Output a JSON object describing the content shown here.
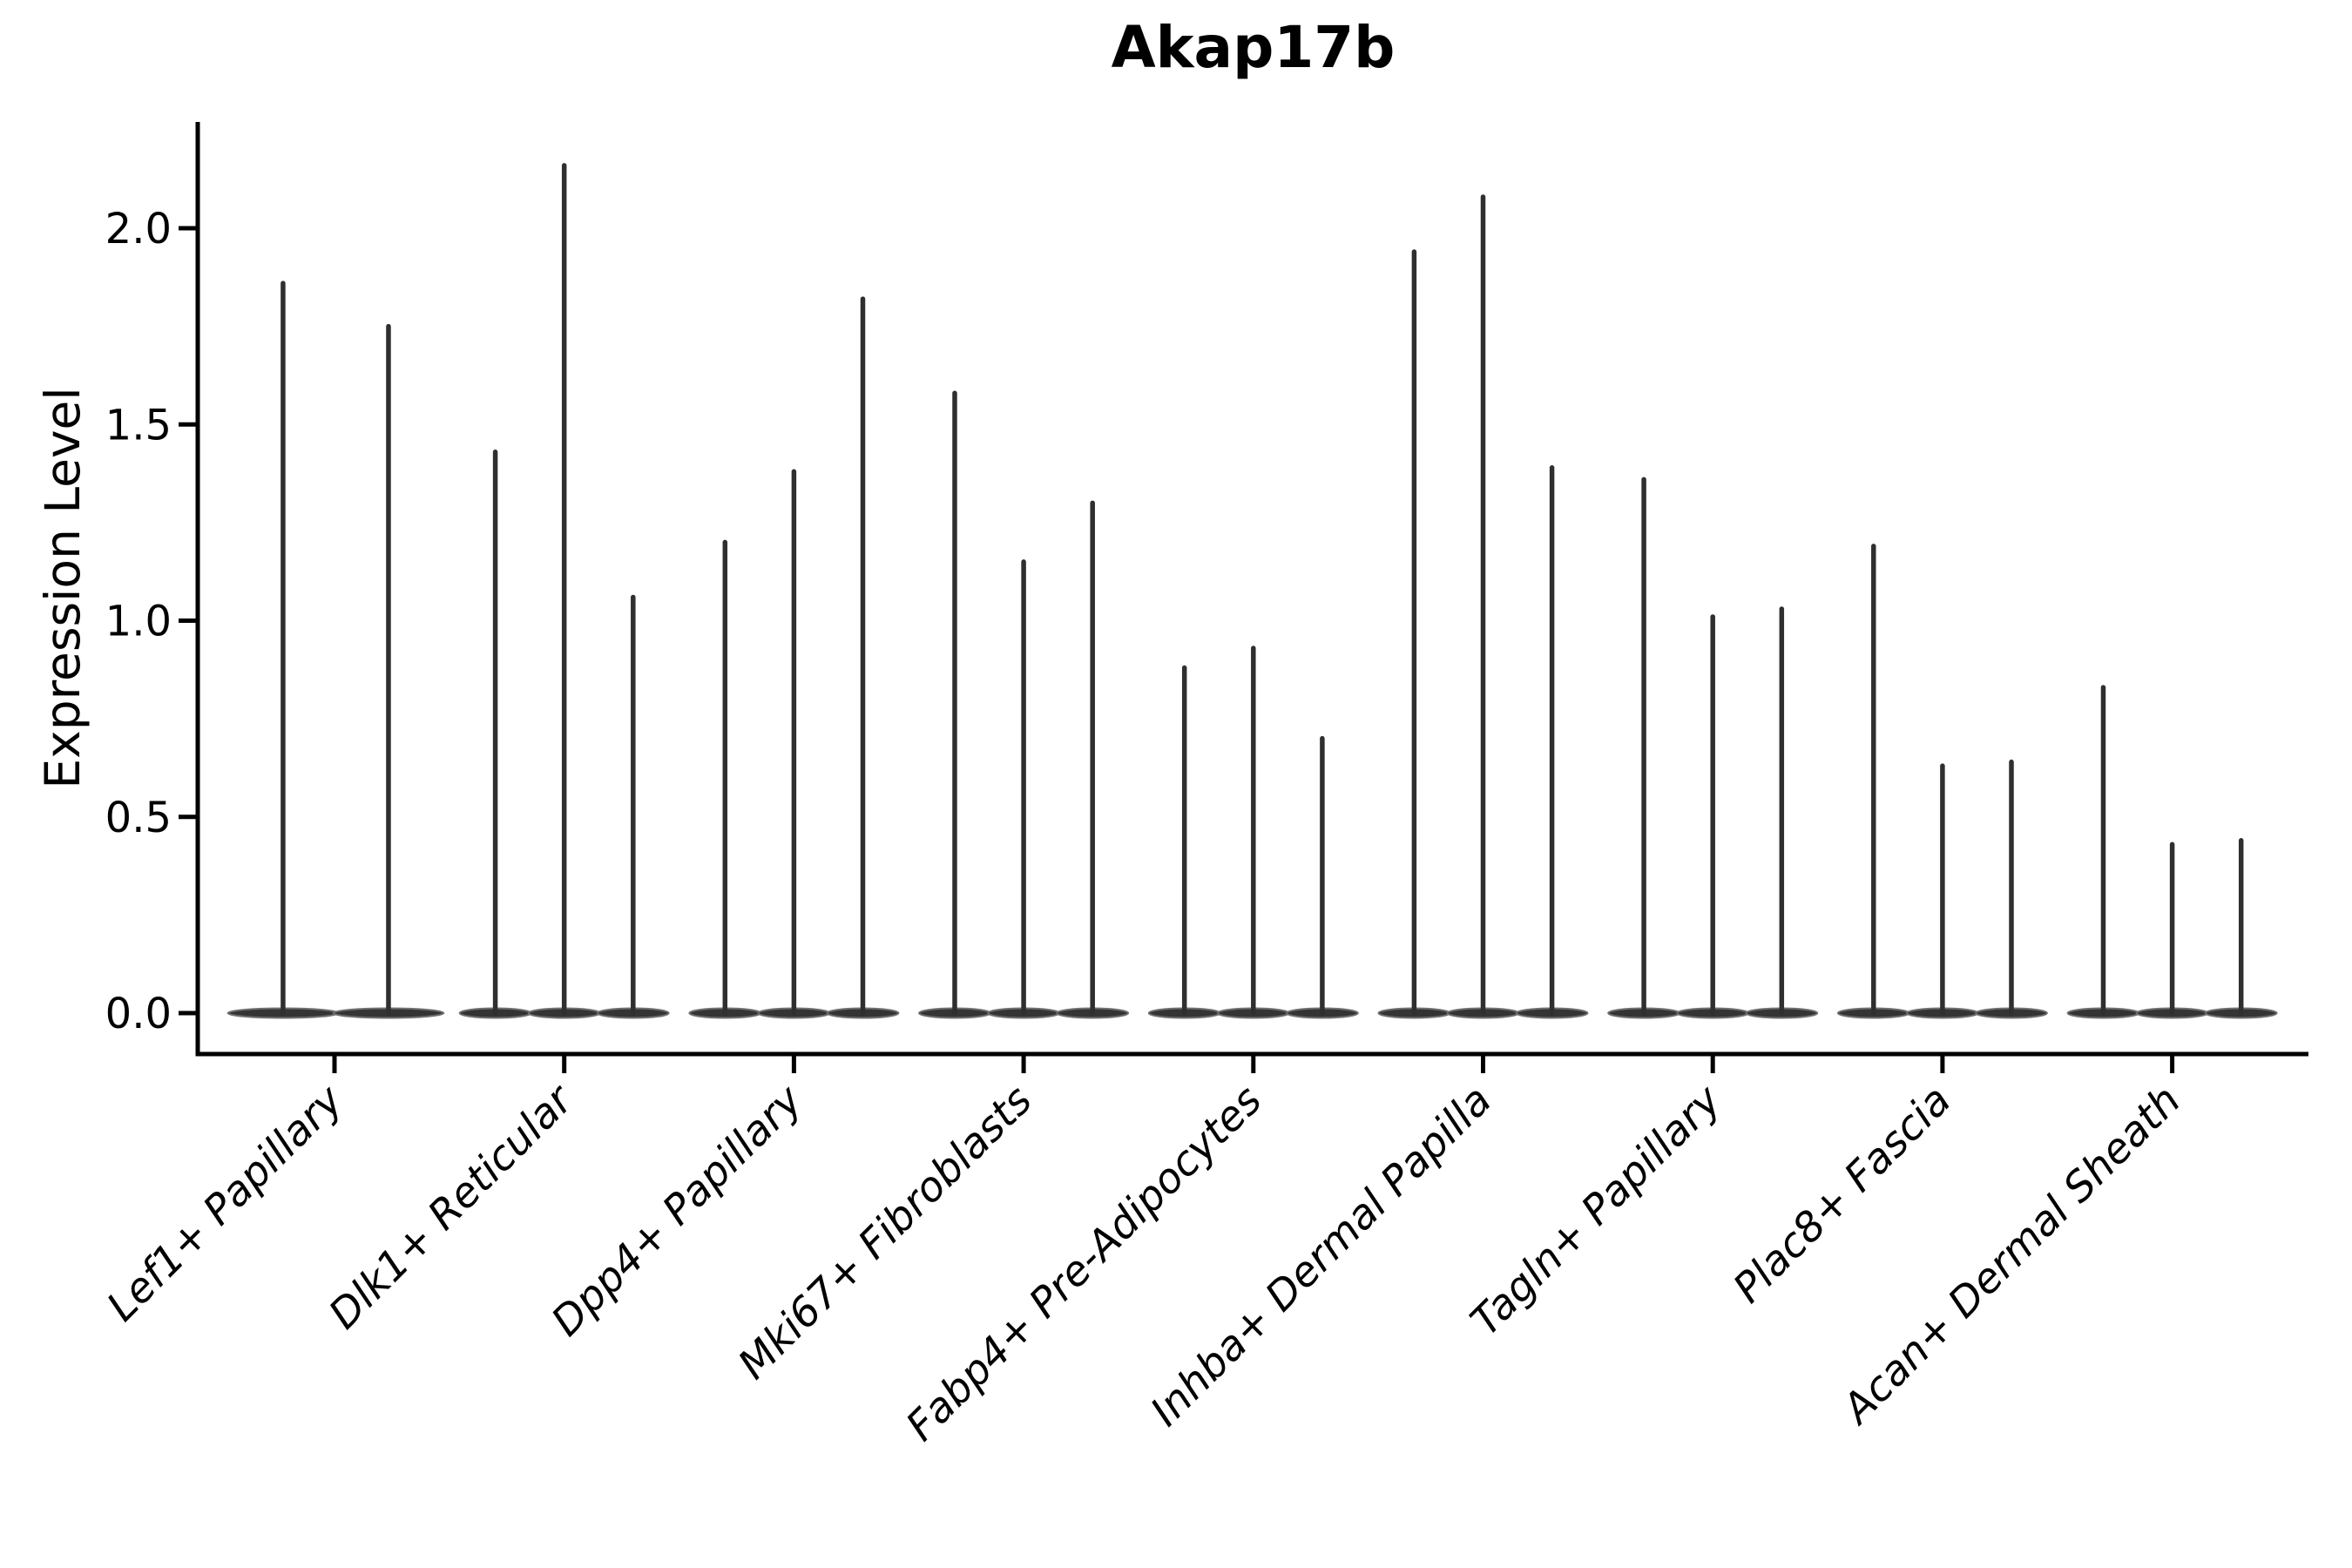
{
  "chart_data": {
    "type": "violin",
    "title": "Akap17b",
    "ylabel": "Expression Level",
    "xlabel": "",
    "grid": false,
    "legend": null,
    "ylim": [
      -0.1,
      2.27
    ],
    "ytick_values": [
      0.0,
      0.5,
      1.0,
      1.5,
      2.0
    ],
    "ytick_labels": [
      "0.0",
      "0.5",
      "1.0",
      "1.5",
      "2.0"
    ],
    "categories": [
      "Lef1+ Papillary",
      "Dlk1+ Reticular",
      "Dpp4+ Papillary",
      "Mki67+ Fibroblasts",
      "Fabp4+ Pre-Adipocytes",
      "Inhba+ Dermal Papilla",
      "Tagln+ Papillary",
      "Plac8+ Fascia",
      "Acan+ Dermal Sheath"
    ],
    "groups": [
      {
        "label": "Lef1+ Papillary",
        "lens_halfwidth": 0.24,
        "violins": [
          {
            "offset": -0.224,
            "max": 1.86
          },
          {
            "offset": 0.235,
            "max": 1.75
          }
        ]
      },
      {
        "label": "Dlk1+ Reticular",
        "lens_halfwidth": 0.155,
        "violins": [
          {
            "offset": -0.3,
            "max": 1.43
          },
          {
            "offset": 0.0,
            "max": 2.16
          },
          {
            "offset": 0.3,
            "max": 1.06
          }
        ]
      },
      {
        "label": "Dpp4+ Papillary",
        "lens_halfwidth": 0.155,
        "violins": [
          {
            "offset": -0.3,
            "max": 1.2
          },
          {
            "offset": 0.0,
            "max": 1.38
          },
          {
            "offset": 0.3,
            "max": 1.82
          }
        ]
      },
      {
        "label": "Mki67+ Fibroblasts",
        "lens_halfwidth": 0.155,
        "violins": [
          {
            "offset": -0.3,
            "max": 1.58
          },
          {
            "offset": 0.0,
            "max": 1.15
          },
          {
            "offset": 0.3,
            "max": 1.3
          }
        ]
      },
      {
        "label": "Fabp4+ Pre-Adipocytes",
        "lens_halfwidth": 0.155,
        "violins": [
          {
            "offset": -0.3,
            "max": 0.88
          },
          {
            "offset": 0.0,
            "max": 0.93
          },
          {
            "offset": 0.3,
            "max": 0.7
          }
        ]
      },
      {
        "label": "Inhba+ Dermal Papilla",
        "lens_halfwidth": 0.155,
        "violins": [
          {
            "offset": -0.3,
            "max": 1.94
          },
          {
            "offset": 0.0,
            "max": 2.08
          },
          {
            "offset": 0.3,
            "max": 1.39
          }
        ]
      },
      {
        "label": "Tagln+ Papillary",
        "lens_halfwidth": 0.155,
        "violins": [
          {
            "offset": -0.3,
            "max": 1.36
          },
          {
            "offset": 0.0,
            "max": 1.01
          },
          {
            "offset": 0.3,
            "max": 1.03
          }
        ]
      },
      {
        "label": "Plac8+ Fascia",
        "lens_halfwidth": 0.155,
        "violins": [
          {
            "offset": -0.3,
            "max": 1.19
          },
          {
            "offset": 0.0,
            "max": 0.63
          },
          {
            "offset": 0.3,
            "max": 0.64
          }
        ]
      },
      {
        "label": "Acan+ Dermal Sheath",
        "lens_halfwidth": 0.155,
        "violins": [
          {
            "offset": -0.3,
            "max": 0.83
          },
          {
            "offset": 0.0,
            "max": 0.43
          },
          {
            "offset": 0.3,
            "max": 0.44
          }
        ]
      }
    ],
    "colors": {
      "violin_spike": "#2f2f2f",
      "violin_base_fill": "#343434",
      "violin_base_edge": "#6f6f6f",
      "axis": "#000000",
      "text": "#000000",
      "background": "#ffffff"
    }
  }
}
